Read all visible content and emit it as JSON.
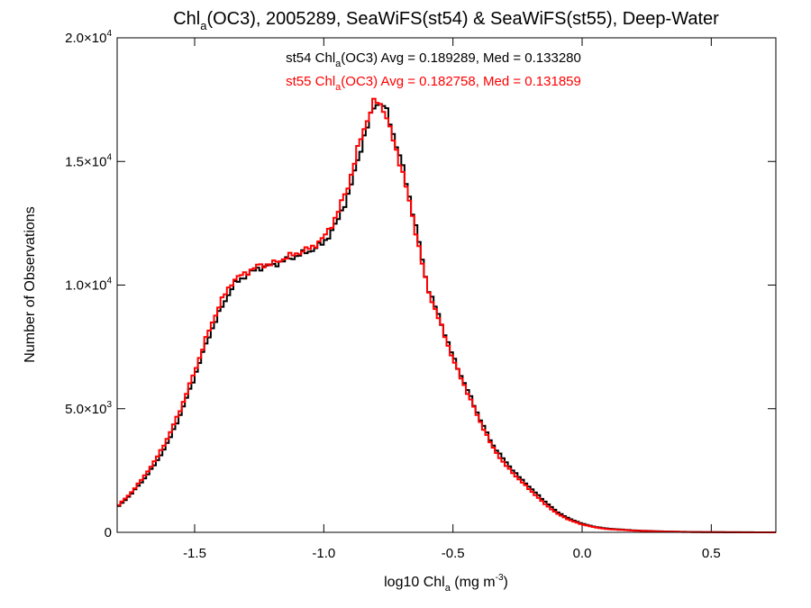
{
  "chart_data": {
    "type": "line",
    "step": true,
    "title": {
      "pre": "Chl",
      "sub": "a",
      "post": "(OC3), 2005289, SeaWiFS(st54) & SeaWiFS(st55), Deep-Water"
    },
    "xlabel": {
      "pre": "log10 Chl",
      "sub": "a",
      "mid": " (mg m",
      "sup": "-3",
      "post": ")"
    },
    "ylabel": "Number of Observations",
    "xlim": [
      -1.8,
      0.75
    ],
    "ylim": [
      0,
      20000
    ],
    "x_ticks": [
      {
        "value": -1.5,
        "label": "-1.5"
      },
      {
        "value": -1.0,
        "label": "-1.0"
      },
      {
        "value": -0.5,
        "label": "-0.5"
      },
      {
        "value": 0.0,
        "label": "0.0"
      },
      {
        "value": 0.5,
        "label": "0.5"
      }
    ],
    "y_ticks": [
      {
        "value": 0,
        "mant": "0",
        "exp": ""
      },
      {
        "value": 5000,
        "mant": "5.0×10",
        "exp": "3"
      },
      {
        "value": 10000,
        "mant": "1.0×10",
        "exp": "4"
      },
      {
        "value": 15000,
        "mant": "1.5×10",
        "exp": "4"
      },
      {
        "value": 20000,
        "mant": "2.0×10",
        "exp": "4"
      }
    ],
    "annotations": [
      {
        "pre": "st54 Chl",
        "sub": "a",
        "post": "(OC3) Avg = 0.189289, Med = 0.133280",
        "color": "#000000"
      },
      {
        "pre": "st55 Chl",
        "sub": "a",
        "post": "(OC3) Avg = 0.182758, Med = 0.131859",
        "color": "#ff0000"
      }
    ],
    "series": [
      {
        "name": "st54",
        "color": "#000000",
        "x": [
          -1.8,
          -1.75,
          -1.7,
          -1.65,
          -1.6,
          -1.55,
          -1.5,
          -1.45,
          -1.4,
          -1.35,
          -1.3,
          -1.25,
          -1.2,
          -1.15,
          -1.1,
          -1.05,
          -1.0,
          -0.95,
          -0.9,
          -0.85,
          -0.8,
          -0.77,
          -0.75,
          -0.7,
          -0.65,
          -0.6,
          -0.55,
          -0.5,
          -0.45,
          -0.4,
          -0.35,
          -0.3,
          -0.25,
          -0.2,
          -0.15,
          -0.1,
          -0.05,
          0.0,
          0.05,
          0.1,
          0.2,
          0.3,
          0.4,
          0.5,
          0.6,
          0.75
        ],
        "values": [
          1000,
          1500,
          2100,
          2800,
          3700,
          4900,
          6300,
          7800,
          9000,
          10000,
          10400,
          10700,
          10800,
          11000,
          11200,
          11400,
          11700,
          12500,
          13800,
          15800,
          17400,
          17300,
          16800,
          15000,
          12700,
          10000,
          8600,
          7100,
          5900,
          4700,
          3600,
          2900,
          2300,
          1800,
          1300,
          850,
          550,
          350,
          220,
          150,
          80,
          40,
          20,
          8,
          3,
          0
        ]
      },
      {
        "name": "st55",
        "color": "#ff0000",
        "x": [
          -1.8,
          -1.75,
          -1.7,
          -1.65,
          -1.6,
          -1.55,
          -1.5,
          -1.45,
          -1.4,
          -1.35,
          -1.3,
          -1.25,
          -1.2,
          -1.15,
          -1.1,
          -1.05,
          -1.0,
          -0.95,
          -0.9,
          -0.85,
          -0.8,
          -0.77,
          -0.75,
          -0.7,
          -0.65,
          -0.6,
          -0.55,
          -0.5,
          -0.45,
          -0.4,
          -0.35,
          -0.3,
          -0.25,
          -0.2,
          -0.15,
          -0.1,
          -0.05,
          0.0,
          0.05,
          0.1,
          0.2,
          0.3,
          0.4,
          0.5,
          0.6,
          0.75
        ],
        "values": [
          1050,
          1550,
          2200,
          2950,
          3900,
          5100,
          6500,
          8000,
          9300,
          10200,
          10500,
          10800,
          10850,
          11100,
          11300,
          11500,
          11900,
          12800,
          14200,
          16200,
          17500,
          17200,
          16500,
          14800,
          12500,
          9900,
          8500,
          7000,
          5800,
          4600,
          3500,
          2750,
          2200,
          1700,
          1200,
          780,
          500,
          320,
          200,
          130,
          70,
          35,
          15,
          6,
          2,
          0
        ]
      }
    ]
  }
}
